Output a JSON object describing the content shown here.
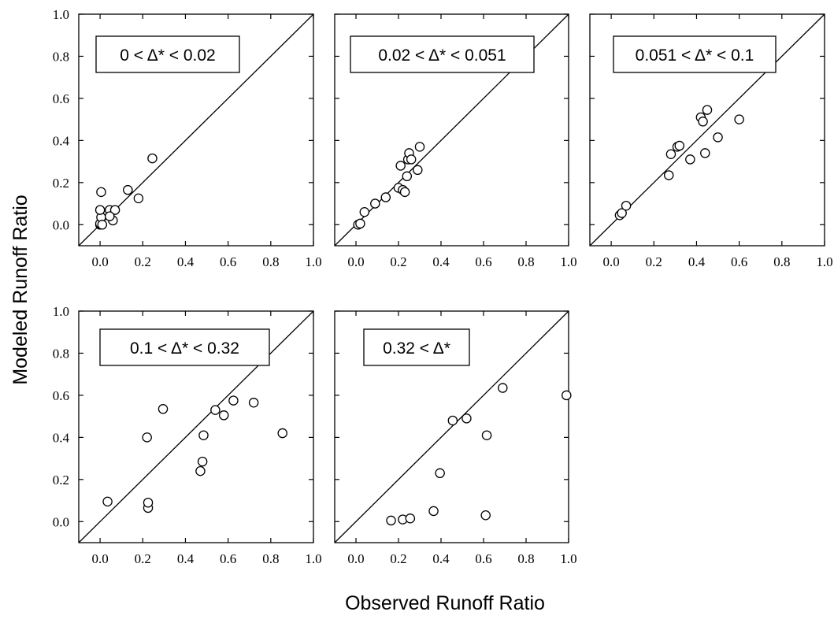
{
  "figure": {
    "xlabel": "Observed Runoff Ratio",
    "ylabel": "Modeled Runoff Ratio"
  },
  "chart_data": [
    {
      "type": "scatter",
      "label": "0 < Δ* < 0.02",
      "xlim": [
        -0.1,
        1.0
      ],
      "ylim": [
        -0.1,
        1.0
      ],
      "xticks": [
        "0.0",
        "0.2",
        "0.4",
        "0.6",
        "0.8",
        "1.0"
      ],
      "yticks": [
        "0.0",
        "0.2",
        "0.4",
        "0.6",
        "0.8",
        "1.0"
      ],
      "x": [
        0.0,
        0.0,
        0.005,
        0.005,
        0.0,
        0.045,
        0.06,
        0.07,
        0.13,
        0.18,
        0.245,
        0.01,
        0.045
      ],
      "y": [
        0.0,
        0.005,
        0.035,
        0.155,
        0.07,
        0.07,
        0.02,
        0.07,
        0.165,
        0.125,
        0.315,
        0.0,
        0.04
      ]
    },
    {
      "type": "scatter",
      "label": "0.02 < Δ* < 0.051",
      "xlim": [
        -0.1,
        1.0
      ],
      "ylim": [
        -0.1,
        1.0
      ],
      "xticks": [
        "0.0",
        "0.2",
        "0.4",
        "0.6",
        "0.8",
        "1.0"
      ],
      "yticks": [
        "0.0",
        "0.2",
        "0.4",
        "0.6",
        "0.8",
        "1.0"
      ],
      "x": [
        0.01,
        0.02,
        0.04,
        0.09,
        0.14,
        0.2,
        0.22,
        0.23,
        0.24,
        0.245,
        0.25,
        0.26,
        0.29,
        0.3,
        0.21
      ],
      "y": [
        0.0,
        0.005,
        0.06,
        0.1,
        0.13,
        0.175,
        0.165,
        0.155,
        0.23,
        0.31,
        0.34,
        0.31,
        0.26,
        0.37,
        0.28
      ]
    },
    {
      "type": "scatter",
      "label": "0.051 < Δ* < 0.1",
      "xlim": [
        -0.1,
        1.0
      ],
      "ylim": [
        -0.1,
        1.0
      ],
      "xticks": [
        "0.0",
        "0.2",
        "0.4",
        "0.6",
        "0.8",
        "1.0"
      ],
      "yticks": [
        "0.0",
        "0.2",
        "0.4",
        "0.6",
        "0.8",
        "1.0"
      ],
      "x": [
        0.04,
        0.05,
        0.07,
        0.27,
        0.28,
        0.31,
        0.32,
        0.37,
        0.42,
        0.43,
        0.44,
        0.45,
        0.5,
        0.6
      ],
      "y": [
        0.045,
        0.055,
        0.09,
        0.235,
        0.335,
        0.37,
        0.375,
        0.31,
        0.51,
        0.49,
        0.34,
        0.545,
        0.415,
        0.5
      ]
    },
    {
      "type": "scatter",
      "label": "0.1 < Δ* < 0.32",
      "xlim": [
        -0.1,
        1.0
      ],
      "ylim": [
        -0.1,
        1.0
      ],
      "xticks": [
        "0.0",
        "0.2",
        "0.4",
        "0.6",
        "0.8",
        "1.0"
      ],
      "yticks": [
        "0.0",
        "0.2",
        "0.4",
        "0.6",
        "0.8",
        "1.0"
      ],
      "x": [
        0.035,
        0.22,
        0.225,
        0.225,
        0.295,
        0.47,
        0.48,
        0.485,
        0.54,
        0.58,
        0.625,
        0.72,
        0.855
      ],
      "y": [
        0.095,
        0.4,
        0.065,
        0.09,
        0.535,
        0.24,
        0.285,
        0.41,
        0.53,
        0.505,
        0.575,
        0.565,
        0.42
      ]
    },
    {
      "type": "scatter",
      "label": "0.32 < Δ*",
      "xlim": [
        -0.1,
        1.0
      ],
      "ylim": [
        -0.1,
        1.0
      ],
      "xticks": [
        "0.0",
        "0.2",
        "0.4",
        "0.6",
        "0.8",
        "1.0"
      ],
      "yticks": [
        "0.0",
        "0.2",
        "0.4",
        "0.6",
        "0.8",
        "1.0"
      ],
      "x": [
        0.165,
        0.22,
        0.255,
        0.365,
        0.395,
        0.455,
        0.52,
        0.61,
        0.615,
        0.69,
        0.99
      ],
      "y": [
        0.005,
        0.01,
        0.015,
        0.05,
        0.23,
        0.48,
        0.49,
        0.03,
        0.41,
        0.635,
        0.6
      ]
    }
  ]
}
